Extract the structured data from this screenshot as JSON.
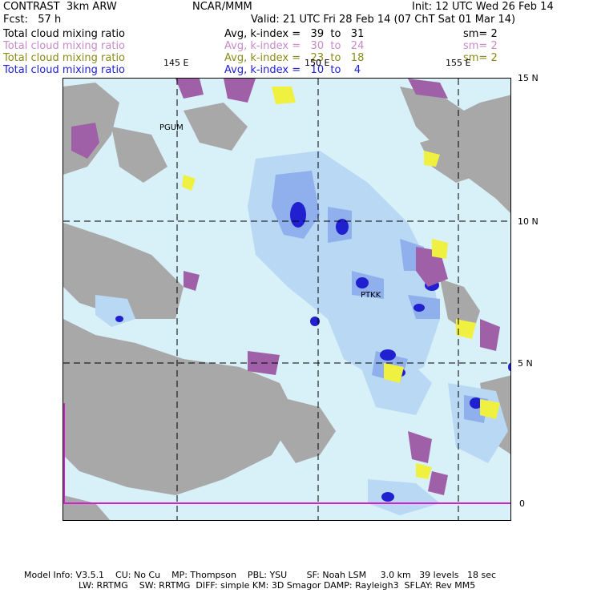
{
  "header": {
    "model": "CONTRAST  3km ARW",
    "org": "NCAR/MMM",
    "init": "Init: 12 UTC Wed 26 Feb 14",
    "fcst": "Fcst:   57 h",
    "valid": "Valid: 21 UTC Fri 28 Feb 14 (07 ChT Sat 01 Mar 14)"
  },
  "fields": [
    {
      "name": "Total cloud mixing ratio",
      "range": "Avg, k-index =   39  to   31",
      "sm": "sm= 2",
      "color": "#000000"
    },
    {
      "name": "Total cloud mixing ratio",
      "range": "Avg, k-index =   30  to   24",
      "sm": "sm= 2",
      "color": "#c98bc9"
    },
    {
      "name": "Total cloud mixing ratio",
      "range": "Avg, k-index =   23  to   18",
      "sm": "sm= 2",
      "color": "#8a8a1a"
    },
    {
      "name": "Total cloud mixing ratio",
      "range": "Avg, k-index =   10  to    4",
      "sm": "",
      "color": "#2020d8"
    }
  ],
  "map": {
    "lon_labels": [
      "145 E",
      "150 E",
      "155 E"
    ],
    "lat_labels": [
      "15 N",
      "10 N",
      "5 N",
      "0"
    ],
    "stations": [
      "PGUM",
      "PTKK"
    ],
    "colors": {
      "light_blue": "#d8f0f8",
      "mid_blue": "#a8c8f0",
      "deep_blue": "#6070e0",
      "core": "#2020d0",
      "gray": "#a8a8a8",
      "purple": "#a060a8",
      "yellow": "#f0f040",
      "equator": "#d020d0"
    }
  },
  "footer": {
    "line1": "Model Info: V3.5.1    CU: No Cu    MP: Thompson    PBL: YSU       SF: Noah LSM     3.0 km   39 levels   18 sec",
    "line2": "LW: RRTMG    SW: RRTMG  DIFF: simple KM: 3D Smagor DAMP: Rayleigh3  SFLAY: Rev MM5"
  }
}
